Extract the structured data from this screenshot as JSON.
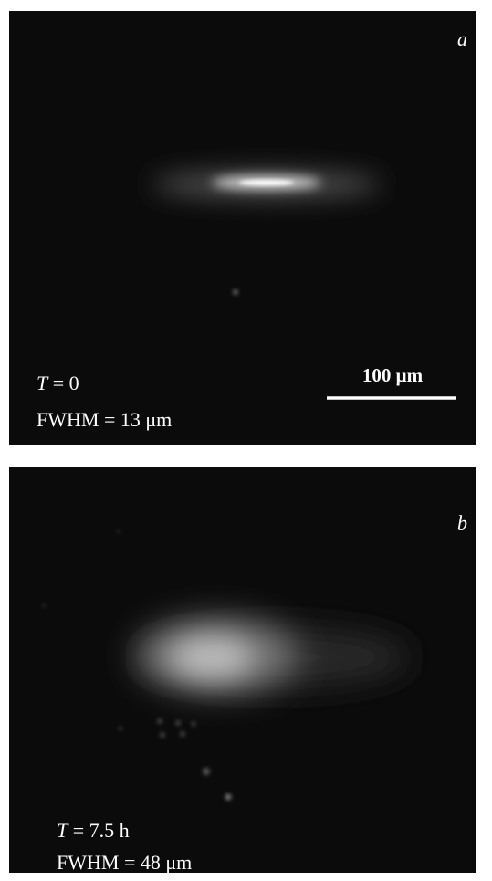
{
  "panels": [
    {
      "label": "a",
      "time": {
        "symbol": "T",
        "rest": "= 0"
      },
      "fwhm": "FWHM = 13 μm",
      "scale_bar": "100 μm"
    },
    {
      "label": "b",
      "time": {
        "symbol": "T",
        "rest": "= 7.5 h"
      },
      "fwhm": "FWHM = 48 μm"
    }
  ]
}
